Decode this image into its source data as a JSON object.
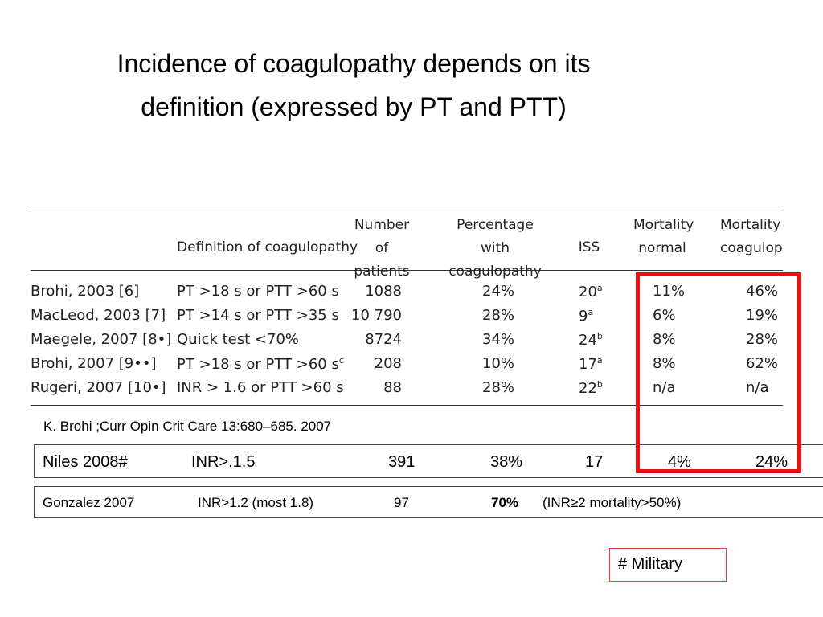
{
  "title": {
    "line1": "Incidence of coagulopathy depends on its",
    "line2": "definition (expressed by PT and PTT)"
  },
  "table": {
    "headers": {
      "definition": "Definition of coagulopathy",
      "patients_1": "Number of",
      "patients_2": "patients",
      "pct_1": "Percentage with",
      "pct_2": "coagulopathy",
      "iss": "ISS",
      "mort_normal_1": "Mortality",
      "mort_normal_2": "normal",
      "mort_coag_1": "Mortality",
      "mort_coag_2": "coagulopa"
    },
    "rows": [
      {
        "study": "Brohi, 2003 [6]",
        "definition": "PT >18 s or PTT >60 s",
        "def_sup": "",
        "patients": "1088",
        "pct": "24%",
        "iss": "20",
        "iss_sup": "a",
        "mort_normal": "11%",
        "mort_coag": "46%"
      },
      {
        "study": "MacLeod, 2003 [7]",
        "definition": "PT >14 s or PTT >35 s",
        "def_sup": "",
        "patients": "10 790",
        "pct": "28%",
        "iss": "9",
        "iss_sup": "a",
        "mort_normal": "6%",
        "mort_coag": "19%"
      },
      {
        "study": "Maegele, 2007 [8•]",
        "definition": "Quick test <70%",
        "def_sup": "",
        "patients": "8724",
        "pct": "34%",
        "iss": "24",
        "iss_sup": "b",
        "mort_normal": "8%",
        "mort_coag": "28%"
      },
      {
        "study": "Brohi, 2007 [9••]",
        "definition": "PT >18 s or PTT >60 s",
        "def_sup": "c",
        "patients": "208",
        "pct": "10%",
        "iss": "17",
        "iss_sup": "a",
        "mort_normal": "8%",
        "mort_coag": "62%"
      },
      {
        "study": "Rugeri, 2007 [10•]",
        "definition": "INR > 1.6 or PTT >60 s",
        "def_sup": "",
        "patients": "88",
        "pct": "28%",
        "iss": "22",
        "iss_sup": "b",
        "mort_normal": "n/a",
        "mort_coag": "n/a"
      }
    ]
  },
  "citation": "K. Brohi ;Curr Opin Crit Care 13:680–685. 2007",
  "niles": {
    "study": "Niles 2008#",
    "definition": "INR>.1.5",
    "patients": "391",
    "pct": "38%",
    "iss": "17",
    "mort_normal": "4%",
    "mort_coag": "24%"
  },
  "gonzalez": {
    "study": "Gonzalez 2007",
    "definition": "INR>1.2 (most 1.8)",
    "patients": "97",
    "pct": "70%",
    "note": "(INR≥2  mortality>50%)"
  },
  "military_note": "# Military",
  "colors": {
    "highlight": "#e81010",
    "military_border": "#e04030"
  }
}
